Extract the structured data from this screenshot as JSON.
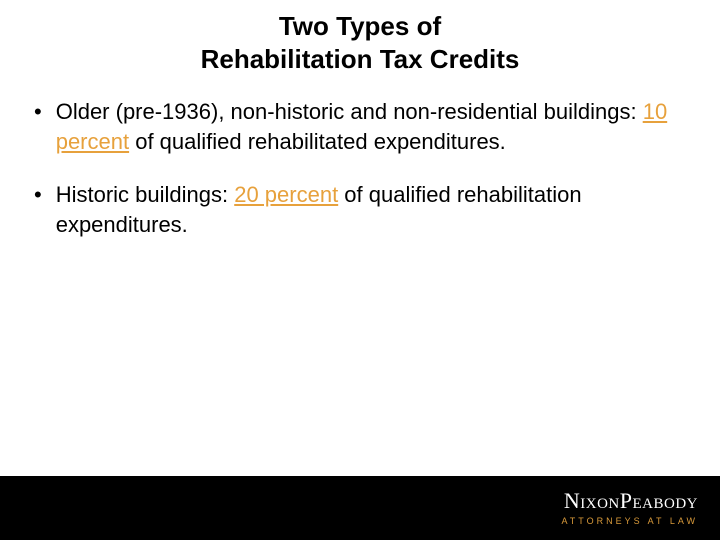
{
  "title": {
    "line1": "Two Types of",
    "line2": "Rehabilitation Tax Credits",
    "fontsize": 26,
    "color": "#000000",
    "weight": "bold"
  },
  "bullets": [
    {
      "marker": "•",
      "runs": [
        {
          "text": "Older (pre-1936), non-historic and non-residential buildings: ",
          "highlight": false
        },
        {
          "text": "10 percent",
          "highlight": true
        },
        {
          "text": " of qualified rehabilitated expenditures.",
          "highlight": false
        }
      ]
    },
    {
      "marker": "•",
      "runs": [
        {
          "text": "Historic buildings: ",
          "highlight": false
        },
        {
          "text": "20 percent",
          "highlight": true
        },
        {
          "text": " of qualified rehabilitation expenditures.",
          "highlight": false
        }
      ]
    }
  ],
  "body": {
    "fontsize": 22,
    "color": "#000000"
  },
  "highlight": {
    "color": "#e7a13c",
    "underline": true
  },
  "footer": {
    "background": "#000000",
    "height": 64,
    "brand_main_prefix": "N",
    "brand_main_rest_1": "ixon",
    "brand_main_mid": "P",
    "brand_main_rest_2": "eabody",
    "brand_main_color": "#ffffff",
    "brand_main_fontsize": 22,
    "brand_sub": "ATTORNEYS AT LAW",
    "brand_sub_color": "#d99a3a",
    "brand_sub_fontsize": 9,
    "brand_sub_letter_spacing": 3
  }
}
